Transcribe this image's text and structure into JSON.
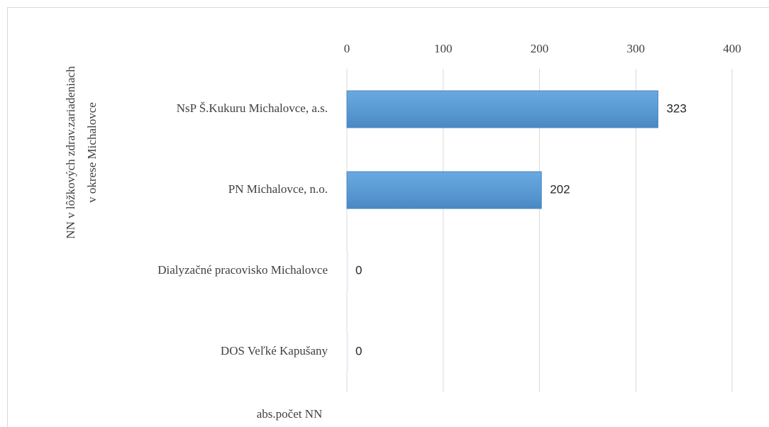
{
  "chart_data": {
    "type": "bar",
    "orientation": "horizontal",
    "ylabel": [
      "NN v lôžkových zdrav.zariadeniach",
      "v okrese Michalovce"
    ],
    "xlabel": "abs.počet NN",
    "categories": [
      "NsP Š.Kukuru Michalovce, a.s.",
      "PN Michalovce, n.o.",
      "Dialyzačné pracovisko  Michalovce",
      "DOS Veľké Kapušany"
    ],
    "values": [
      323,
      202,
      0,
      0
    ],
    "color": "#5b9bd5",
    "xlim": [
      0,
      400
    ],
    "xticks": [
      0,
      100,
      200,
      300,
      400
    ],
    "grid": true
  }
}
